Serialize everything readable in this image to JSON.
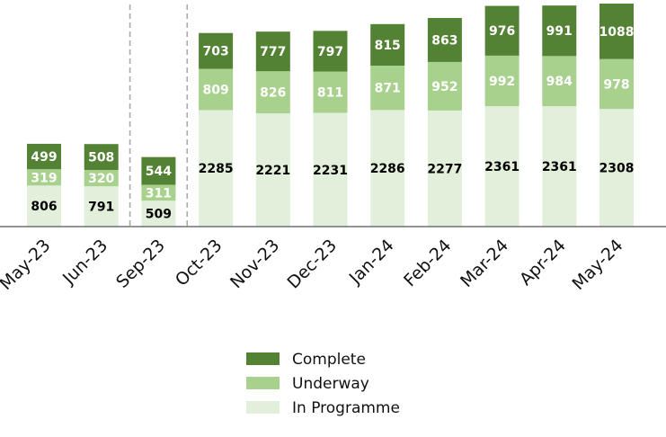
{
  "chart_data": {
    "type": "bar",
    "stacked": true,
    "categories": [
      "May-23",
      "Jun-23",
      "Sep-23",
      "Oct-23",
      "Nov-23",
      "Dec-23",
      "Jan-24",
      "Feb-24",
      "Mar-24",
      "Apr-24",
      "May-24"
    ],
    "series": [
      {
        "name": "In Programme",
        "color": "#e2efda",
        "label_color": "#000000",
        "values": [
          806,
          791,
          509,
          2285,
          2221,
          2231,
          2286,
          2277,
          2361,
          2361,
          2308
        ]
      },
      {
        "name": "Underway",
        "color": "#a9d18e",
        "label_color": "#ffffff",
        "values": [
          319,
          320,
          311,
          809,
          826,
          811,
          871,
          952,
          992,
          984,
          978
        ]
      },
      {
        "name": "Complete",
        "color": "#548235",
        "label_color": "#ffffff",
        "values": [
          499,
          508,
          544,
          703,
          777,
          797,
          815,
          863,
          976,
          991,
          1088
        ]
      }
    ],
    "legend_order": [
      "Complete",
      "Underway",
      "In Programme"
    ],
    "title": "",
    "xlabel": "",
    "ylabel": "",
    "ylim": [
      0,
      4500
    ],
    "grid": false,
    "y_axis_visible": false,
    "dashed_separators_after": [
      "Jun-23",
      "Sep-23"
    ],
    "legend_position": "bottom-center"
  }
}
